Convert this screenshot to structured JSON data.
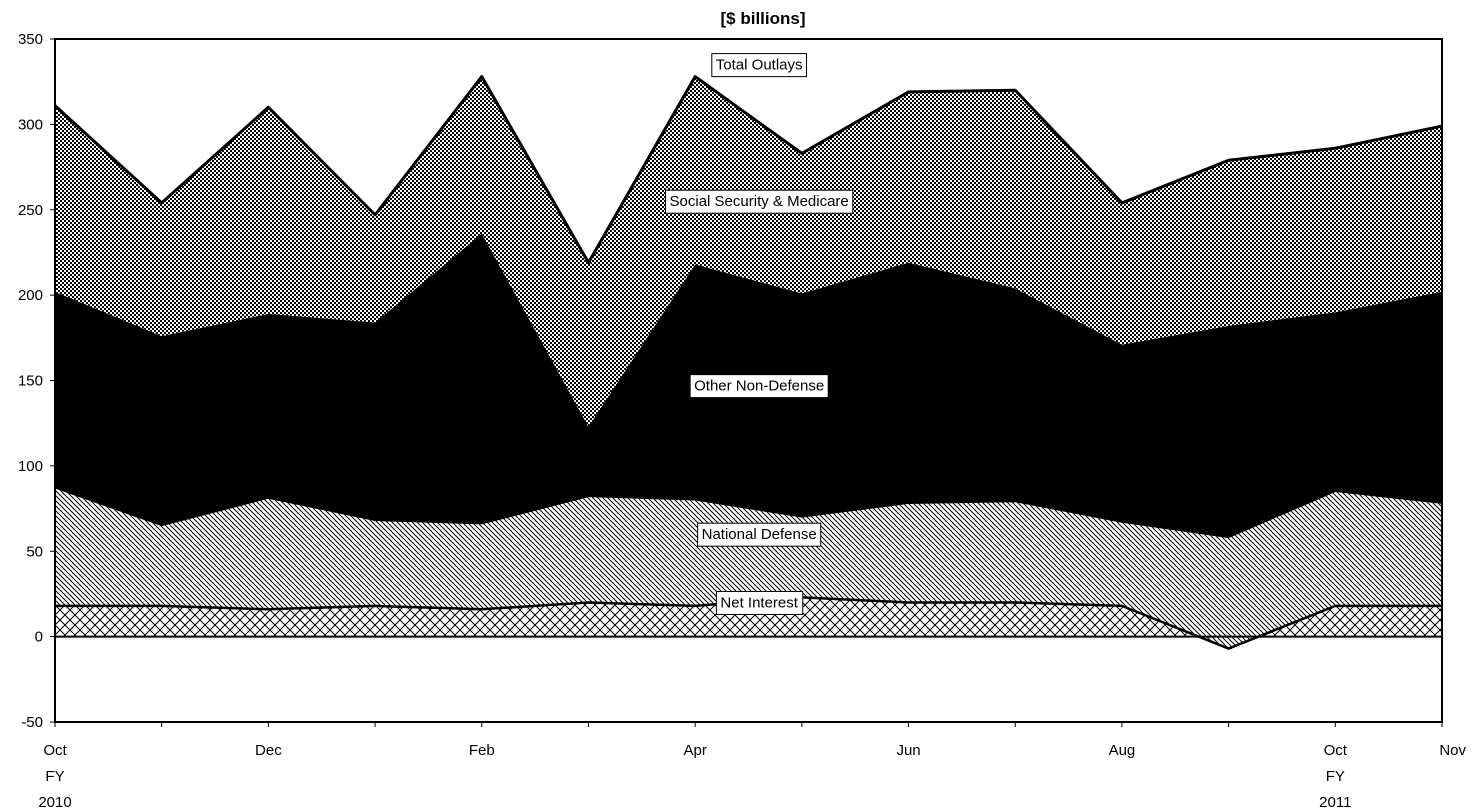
{
  "chart_data": {
    "type": "area",
    "title": "[$ billions]",
    "xlabel": "",
    "ylabel": "",
    "ylim": [
      -50,
      350
    ],
    "yticks": [
      -50,
      0,
      50,
      100,
      150,
      200,
      250,
      300,
      350
    ],
    "x": [
      "Oct 2010",
      "Nov 2010",
      "Dec 2010",
      "Jan 2011",
      "Feb 2011",
      "Mar 2011",
      "Apr 2011",
      "May 2011",
      "Jun 2011",
      "Jul 2011",
      "Aug 2011",
      "Sep 2011",
      "Oct 2011",
      "Nov 2011"
    ],
    "x_tick_labels": [
      {
        "index": 0,
        "lines": [
          "Oct",
          "FY",
          "2010"
        ]
      },
      {
        "index": 2,
        "lines": [
          "Dec"
        ]
      },
      {
        "index": 4,
        "lines": [
          "Feb"
        ]
      },
      {
        "index": 6,
        "lines": [
          "Apr"
        ]
      },
      {
        "index": 8,
        "lines": [
          "Jun"
        ]
      },
      {
        "index": 10,
        "lines": [
          "Aug"
        ]
      },
      {
        "index": 12,
        "lines": [
          "Oct",
          "FY",
          "2011"
        ]
      },
      {
        "index": 13,
        "lines": [
          "Nov"
        ]
      }
    ],
    "cumulative_series": [
      {
        "name": "Net Interest",
        "values": [
          18,
          18,
          16,
          18,
          16,
          20,
          18,
          23,
          20,
          20,
          18,
          -7,
          18,
          18
        ]
      },
      {
        "name": "National Defense",
        "values": [
          87,
          65,
          81,
          68,
          66,
          82,
          80,
          70,
          78,
          79,
          67,
          58,
          85,
          78
        ]
      },
      {
        "name": "Other Non-Defense",
        "values": [
          202,
          176,
          189,
          184,
          236,
          123,
          218,
          201,
          219,
          204,
          171,
          182,
          190,
          202
        ]
      },
      {
        "name": "Social Security & Medicare",
        "values": [
          311,
          254,
          310,
          247,
          328,
          219,
          328,
          283,
          319,
          320,
          254,
          279,
          286,
          299
        ]
      }
    ],
    "total_line": {
      "name": "Total Outlays",
      "values": [
        311,
        254,
        310,
        247,
        328,
        219,
        328,
        283,
        319,
        320,
        254,
        279,
        286,
        299
      ]
    },
    "annotations": [
      {
        "text": "Total Outlays",
        "x_index": 6.6,
        "y": 335
      },
      {
        "text": "Social Security & Medicare",
        "x_index": 6.6,
        "y": 255
      },
      {
        "text": "Other Non-Defense",
        "x_index": 6.6,
        "y": 147
      },
      {
        "text": "National Defense",
        "x_index": 6.6,
        "y": 60
      },
      {
        "text": "Net Interest",
        "x_index": 6.6,
        "y": 20
      }
    ],
    "grid": false,
    "legend": "none",
    "colors": {
      "axis": "#000000",
      "other_non_defense": "#000000"
    }
  }
}
